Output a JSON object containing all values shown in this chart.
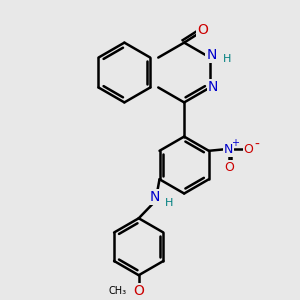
{
  "bg_color": "#e8e8e8",
  "bond_color": "#000000",
  "bond_width": 1.8,
  "atom_colors": {
    "N": "#0000cc",
    "O": "#cc0000",
    "H": "#008080",
    "C": "#000000"
  },
  "figsize": [
    3.0,
    3.0
  ],
  "dpi": 100,
  "xlim": [
    0,
    10
  ],
  "ylim": [
    0,
    10
  ]
}
